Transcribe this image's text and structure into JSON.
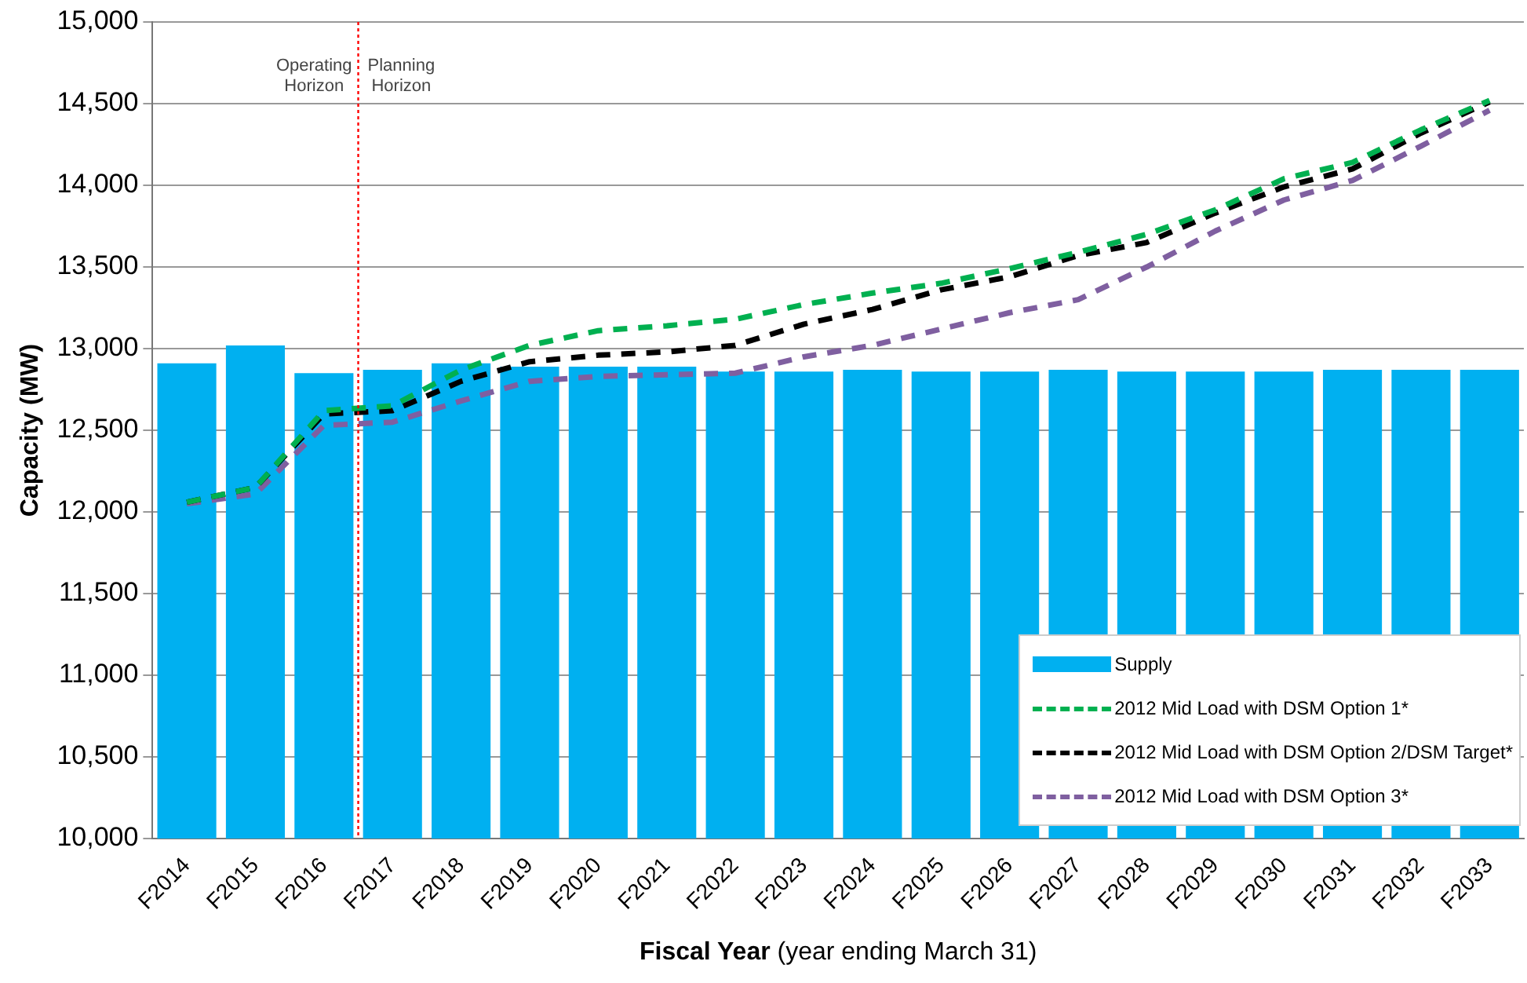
{
  "chart_data": {
    "type": "bar",
    "xlabel": "Fiscal Year (year ending March 31)",
    "ylabel": "Capacity (MW)",
    "categories": [
      "F2014",
      "F2015",
      "F2016",
      "F2017",
      "F2018",
      "F2019",
      "F2020",
      "F2021",
      "F2022",
      "F2023",
      "F2024",
      "F2025",
      "F2026",
      "F2027",
      "F2028",
      "F2029",
      "F2030",
      "F2031",
      "F2032",
      "F2033"
    ],
    "series": [
      {
        "name": "Supply",
        "color": "#00b0f0",
        "values": [
          12910,
          13020,
          12850,
          12870,
          12910,
          12890,
          12890,
          12890,
          12860,
          12860,
          12870,
          12860,
          12860,
          12870,
          12860,
          12860,
          12860,
          12870,
          12870,
          12870
        ]
      },
      {
        "name": "2012 Mid Load with DSM Option 1*",
        "type": "line",
        "color": "#00b050",
        "line_style": "dashed",
        "values": [
          12060,
          12150,
          12620,
          12650,
          12870,
          13020,
          13110,
          13140,
          13180,
          13270,
          13340,
          13400,
          13490,
          13590,
          13700,
          13850,
          14040,
          14140,
          14340,
          14520
        ]
      },
      {
        "name": "2012 Mid Load with DSM Option 2/DSM Target*",
        "type": "line",
        "color": "#000000",
        "line_style": "dashed",
        "values": [
          12060,
          12150,
          12600,
          12620,
          12800,
          12920,
          12960,
          12980,
          13020,
          13150,
          13240,
          13360,
          13440,
          13570,
          13650,
          13830,
          13990,
          14100,
          14320,
          14510
        ]
      },
      {
        "name": "2012 Mid Load with DSM Option 3*",
        "type": "line",
        "color": "#7f5fa0",
        "line_style": "dashed",
        "values": [
          12050,
          12110,
          12530,
          12550,
          12680,
          12800,
          12830,
          12840,
          12850,
          12950,
          13020,
          13120,
          13220,
          13300,
          13500,
          13720,
          13910,
          14030,
          14240,
          14460
        ]
      }
    ],
    "ylim": [
      10000,
      15000
    ],
    "yticks": [
      {
        "value": 10000,
        "label": "10,000"
      },
      {
        "value": 10500,
        "label": "10,500"
      },
      {
        "value": 11000,
        "label": "11,000"
      },
      {
        "value": 11500,
        "label": "11,500"
      },
      {
        "value": 12000,
        "label": "12,000"
      },
      {
        "value": 12500,
        "label": "12,500"
      },
      {
        "value": 13000,
        "label": "13,000"
      },
      {
        "value": 13500,
        "label": "13,500"
      },
      {
        "value": 14000,
        "label": "14,000"
      },
      {
        "value": 14500,
        "label": "14,500"
      },
      {
        "value": 15000,
        "label": "15,000"
      }
    ],
    "grid": "y",
    "legend": "bottom right",
    "marker": "none",
    "ref_lines": [
      {
        "axis": "x",
        "value": "F2017",
        "color": "#ff0000",
        "line_style": "dotted"
      }
    ],
    "annotations": [
      "Operating Horizon",
      "Planning Horizon"
    ]
  }
}
